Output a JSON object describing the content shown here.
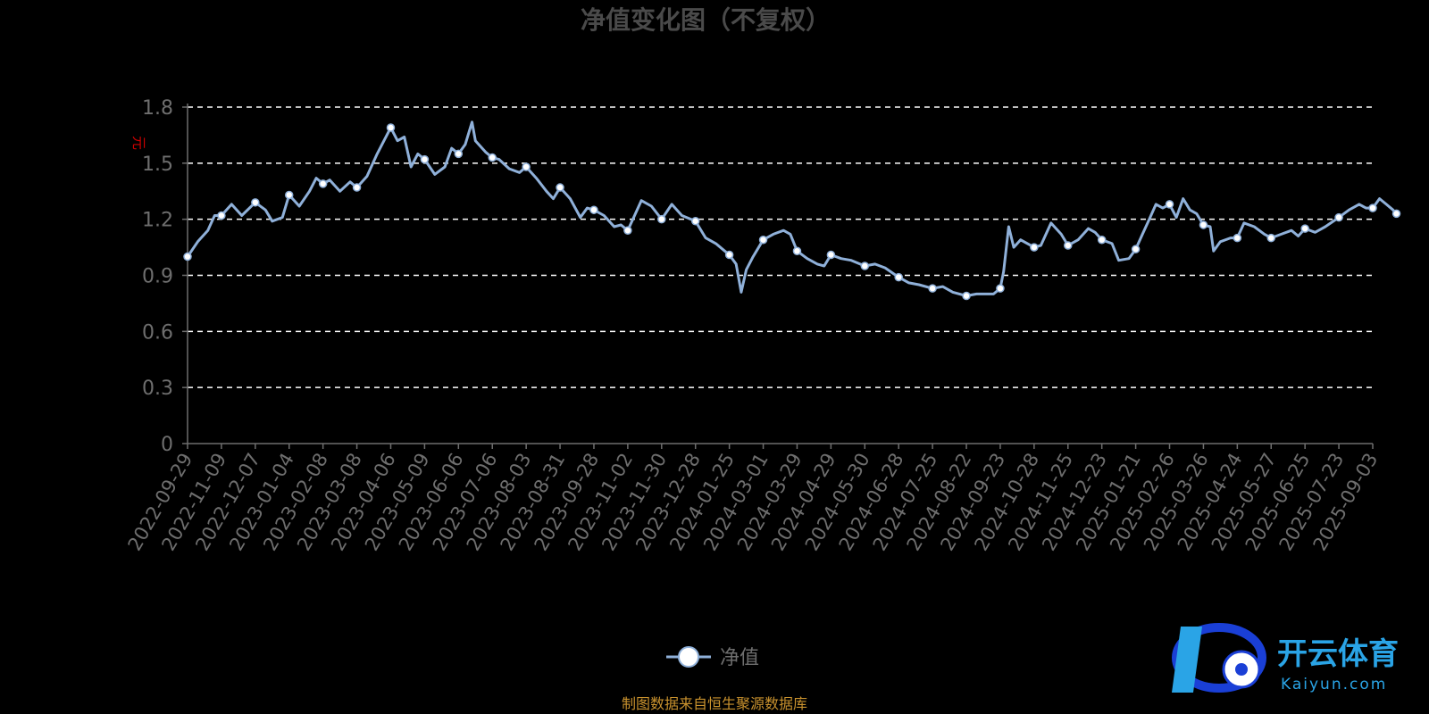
{
  "title": "净值变化图（不复权）",
  "unit_label": "元",
  "source_note": "制图数据来自恒生聚源数据库",
  "watermark": {
    "cn": "开云体育",
    "en": "Kaiyun.com",
    "colors": [
      "#1a3fd6",
      "#2aa4e6",
      "#ffffff"
    ]
  },
  "colors": {
    "background": "#000000",
    "line": "#8fb0d9",
    "grid": "#ffffff",
    "axis": "#6e6e6e",
    "title": "#4a4a4a",
    "unit": "#cc0000",
    "source": "#c9922e"
  },
  "chart_data": {
    "type": "line",
    "title": "净值变化图（不复权）",
    "ylabel": "元",
    "ylim": [
      0,
      1.8
    ],
    "yticks": [
      "0",
      "0.3",
      "0.6",
      "0.9",
      "1.2",
      "1.5",
      "1.8"
    ],
    "grid": true,
    "legend_position": "bottom-center",
    "categories": [
      "2022-09-29",
      "2022-11-09",
      "2022-12-07",
      "2023-01-04",
      "2023-02-08",
      "2023-03-08",
      "2023-04-06",
      "2023-05-09",
      "2023-06-06",
      "2023-07-06",
      "2023-08-03",
      "2023-08-31",
      "2023-09-28",
      "2023-11-02",
      "2023-11-30",
      "2023-12-28",
      "2024-01-25",
      "2024-03-01",
      "2024-03-29",
      "2024-04-29",
      "2024-05-30",
      "2024-06-28",
      "2024-07-25",
      "2024-08-22",
      "2024-09-23",
      "2024-10-28",
      "2024-11-25",
      "2024-12-23",
      "2025-01-21",
      "2025-02-26",
      "2025-03-26",
      "2025-04-24",
      "2025-05-27",
      "2025-06-25",
      "2025-07-23",
      "2025-09-03"
    ],
    "series": [
      {
        "name": "净值",
        "points": [
          [
            0,
            1.0
          ],
          [
            0.3,
            1.08
          ],
          [
            0.6,
            1.14
          ],
          [
            0.8,
            1.22
          ],
          [
            1,
            1.22
          ],
          [
            1.3,
            1.28
          ],
          [
            1.6,
            1.22
          ],
          [
            2,
            1.29
          ],
          [
            2.3,
            1.25
          ],
          [
            2.5,
            1.19
          ],
          [
            2.8,
            1.21
          ],
          [
            3,
            1.33
          ],
          [
            3.3,
            1.27
          ],
          [
            3.6,
            1.35
          ],
          [
            3.8,
            1.42
          ],
          [
            4,
            1.39
          ],
          [
            4.2,
            1.41
          ],
          [
            4.5,
            1.35
          ],
          [
            4.8,
            1.4
          ],
          [
            5,
            1.37
          ],
          [
            5.3,
            1.43
          ],
          [
            5.6,
            1.55
          ],
          [
            5.8,
            1.62
          ],
          [
            6,
            1.69
          ],
          [
            6.2,
            1.62
          ],
          [
            6.4,
            1.64
          ],
          [
            6.6,
            1.48
          ],
          [
            6.8,
            1.55
          ],
          [
            7,
            1.52
          ],
          [
            7.3,
            1.44
          ],
          [
            7.6,
            1.48
          ],
          [
            7.8,
            1.58
          ],
          [
            8,
            1.55
          ],
          [
            8.2,
            1.6
          ],
          [
            8.4,
            1.72
          ],
          [
            8.5,
            1.62
          ],
          [
            8.8,
            1.56
          ],
          [
            9,
            1.53
          ],
          [
            9.2,
            1.52
          ],
          [
            9.5,
            1.47
          ],
          [
            9.8,
            1.45
          ],
          [
            10,
            1.48
          ],
          [
            10.3,
            1.42
          ],
          [
            10.6,
            1.35
          ],
          [
            10.8,
            1.31
          ],
          [
            11,
            1.37
          ],
          [
            11.3,
            1.31
          ],
          [
            11.6,
            1.21
          ],
          [
            11.8,
            1.26
          ],
          [
            12,
            1.25
          ],
          [
            12.3,
            1.22
          ],
          [
            12.6,
            1.16
          ],
          [
            12.8,
            1.17
          ],
          [
            13,
            1.14
          ],
          [
            13.2,
            1.22
          ],
          [
            13.4,
            1.3
          ],
          [
            13.7,
            1.27
          ],
          [
            14,
            1.2
          ],
          [
            14.3,
            1.28
          ],
          [
            14.6,
            1.22
          ],
          [
            15,
            1.19
          ],
          [
            15.3,
            1.1
          ],
          [
            15.6,
            1.07
          ],
          [
            15.8,
            1.04
          ],
          [
            16,
            1.01
          ],
          [
            16.2,
            0.96
          ],
          [
            16.35,
            0.81
          ],
          [
            16.5,
            0.93
          ],
          [
            16.7,
            1.0
          ],
          [
            17,
            1.09
          ],
          [
            17.3,
            1.12
          ],
          [
            17.6,
            1.14
          ],
          [
            17.8,
            1.12
          ],
          [
            18,
            1.03
          ],
          [
            18.3,
            0.99
          ],
          [
            18.6,
            0.96
          ],
          [
            18.8,
            0.95
          ],
          [
            19,
            1.01
          ],
          [
            19.3,
            0.99
          ],
          [
            19.6,
            0.98
          ],
          [
            20,
            0.95
          ],
          [
            20.3,
            0.96
          ],
          [
            20.6,
            0.94
          ],
          [
            21,
            0.89
          ],
          [
            21.3,
            0.86
          ],
          [
            21.6,
            0.85
          ],
          [
            22,
            0.83
          ],
          [
            22.3,
            0.84
          ],
          [
            22.6,
            0.81
          ],
          [
            23,
            0.79
          ],
          [
            23.3,
            0.8
          ],
          [
            23.6,
            0.8
          ],
          [
            23.8,
            0.8
          ],
          [
            24,
            0.83
          ],
          [
            24.1,
            0.92
          ],
          [
            24.25,
            1.16
          ],
          [
            24.4,
            1.05
          ],
          [
            24.6,
            1.09
          ],
          [
            25,
            1.05
          ],
          [
            25.2,
            1.06
          ],
          [
            25.5,
            1.18
          ],
          [
            25.8,
            1.12
          ],
          [
            26,
            1.06
          ],
          [
            26.3,
            1.09
          ],
          [
            26.6,
            1.15
          ],
          [
            26.8,
            1.13
          ],
          [
            27,
            1.09
          ],
          [
            27.3,
            1.07
          ],
          [
            27.5,
            0.98
          ],
          [
            27.8,
            0.99
          ],
          [
            28,
            1.04
          ],
          [
            28.2,
            1.12
          ],
          [
            28.4,
            1.2
          ],
          [
            28.6,
            1.28
          ],
          [
            28.8,
            1.26
          ],
          [
            29,
            1.28
          ],
          [
            29.2,
            1.21
          ],
          [
            29.4,
            1.31
          ],
          [
            29.6,
            1.25
          ],
          [
            29.8,
            1.23
          ],
          [
            30,
            1.17
          ],
          [
            30.2,
            1.16
          ],
          [
            30.3,
            1.03
          ],
          [
            30.5,
            1.08
          ],
          [
            30.8,
            1.1
          ],
          [
            31,
            1.1
          ],
          [
            31.2,
            1.18
          ],
          [
            31.5,
            1.16
          ],
          [
            31.8,
            1.12
          ],
          [
            32,
            1.1
          ],
          [
            32.3,
            1.12
          ],
          [
            32.6,
            1.14
          ],
          [
            32.8,
            1.11
          ],
          [
            33,
            1.15
          ],
          [
            33.3,
            1.13
          ],
          [
            33.6,
            1.16
          ],
          [
            34,
            1.21
          ],
          [
            34.3,
            1.25
          ],
          [
            34.6,
            1.28
          ],
          [
            34.8,
            1.26
          ],
          [
            35,
            1.26
          ],
          [
            35.2,
            1.31
          ],
          [
            35.4,
            1.28
          ],
          [
            35.6,
            1.25
          ],
          [
            35.7,
            1.23
          ]
        ],
        "markers": [
          [
            0,
            1.0
          ],
          [
            1,
            1.22
          ],
          [
            2,
            1.29
          ],
          [
            3,
            1.33
          ],
          [
            4,
            1.39
          ],
          [
            5,
            1.37
          ],
          [
            6,
            1.69
          ],
          [
            7,
            1.52
          ],
          [
            8,
            1.55
          ],
          [
            9,
            1.53
          ],
          [
            10,
            1.48
          ],
          [
            11,
            1.37
          ],
          [
            12,
            1.25
          ],
          [
            13,
            1.14
          ],
          [
            14,
            1.2
          ],
          [
            15,
            1.19
          ],
          [
            16,
            1.01
          ],
          [
            17,
            1.09
          ],
          [
            18,
            1.03
          ],
          [
            19,
            1.01
          ],
          [
            20,
            0.95
          ],
          [
            21,
            0.89
          ],
          [
            22,
            0.83
          ],
          [
            23,
            0.79
          ],
          [
            24,
            0.83
          ],
          [
            25,
            1.05
          ],
          [
            26,
            1.06
          ],
          [
            27,
            1.09
          ],
          [
            28,
            1.04
          ],
          [
            29,
            1.28
          ],
          [
            30,
            1.17
          ],
          [
            31,
            1.1
          ],
          [
            32,
            1.1
          ],
          [
            33,
            1.15
          ],
          [
            34,
            1.21
          ],
          [
            35,
            1.26
          ],
          [
            35.7,
            1.23
          ]
        ]
      }
    ]
  }
}
